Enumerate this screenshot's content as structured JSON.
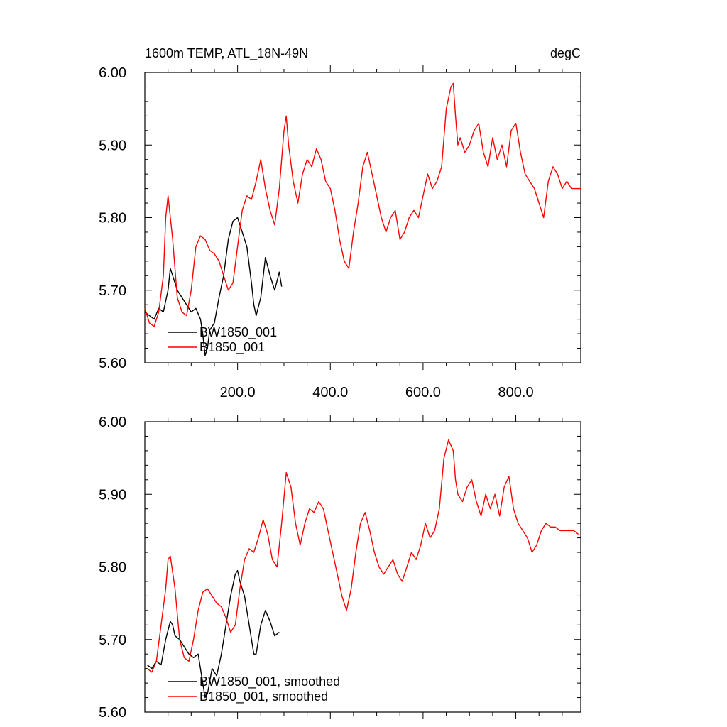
{
  "chart_data": [
    {
      "type": "line",
      "title_left": "1600m TEMP, ATL_18N-49N",
      "title_right": "degC",
      "xlim": [
        0,
        940
      ],
      "ylim": [
        5.6,
        6.0
      ],
      "x_ticks": [
        200,
        400,
        600,
        800
      ],
      "x_tick_labels": [
        "200.0",
        "400.0",
        "600.0",
        "800.0"
      ],
      "y_ticks": [
        5.6,
        5.7,
        5.8,
        5.9,
        6.0
      ],
      "y_tick_labels": [
        "5.60",
        "5.70",
        "5.80",
        "5.90",
        "6.00"
      ],
      "grid": false,
      "legend_position": "bottom-left",
      "series": [
        {
          "name": "BW1850_001",
          "color": "#000000",
          "x": [
            0,
            10,
            20,
            30,
            40,
            50,
            55,
            60,
            70,
            80,
            90,
            100,
            110,
            120,
            125,
            130,
            135,
            140,
            150,
            160,
            170,
            180,
            190,
            200,
            210,
            220,
            230,
            235,
            240,
            250,
            260,
            270,
            280,
            290,
            295
          ],
          "y": [
            5.67,
            5.665,
            5.66,
            5.675,
            5.67,
            5.7,
            5.73,
            5.72,
            5.7,
            5.69,
            5.68,
            5.67,
            5.675,
            5.66,
            5.64,
            5.61,
            5.62,
            5.645,
            5.655,
            5.69,
            5.72,
            5.77,
            5.795,
            5.8,
            5.78,
            5.76,
            5.71,
            5.68,
            5.665,
            5.69,
            5.745,
            5.72,
            5.7,
            5.725,
            5.705
          ]
        },
        {
          "name": "B1850_001",
          "color": "#ff0000",
          "x": [
            0,
            10,
            20,
            30,
            40,
            45,
            50,
            60,
            70,
            80,
            90,
            100,
            110,
            120,
            130,
            140,
            150,
            160,
            170,
            180,
            190,
            200,
            210,
            220,
            230,
            240,
            250,
            260,
            270,
            280,
            290,
            300,
            305,
            310,
            320,
            330,
            340,
            350,
            360,
            370,
            380,
            390,
            400,
            410,
            420,
            430,
            440,
            450,
            460,
            470,
            480,
            490,
            500,
            510,
            520,
            530,
            540,
            550,
            560,
            570,
            580,
            590,
            600,
            610,
            620,
            630,
            640,
            650,
            660,
            665,
            670,
            675,
            680,
            690,
            700,
            710,
            720,
            730,
            740,
            750,
            760,
            770,
            780,
            790,
            800,
            810,
            820,
            830,
            840,
            850,
            860,
            870,
            880,
            890,
            900,
            910,
            920,
            930,
            940
          ],
          "y": [
            5.675,
            5.655,
            5.65,
            5.67,
            5.72,
            5.8,
            5.83,
            5.77,
            5.69,
            5.67,
            5.665,
            5.7,
            5.76,
            5.775,
            5.77,
            5.755,
            5.75,
            5.74,
            5.72,
            5.7,
            5.71,
            5.76,
            5.81,
            5.83,
            5.825,
            5.85,
            5.88,
            5.84,
            5.81,
            5.79,
            5.84,
            5.92,
            5.94,
            5.9,
            5.85,
            5.82,
            5.86,
            5.88,
            5.87,
            5.895,
            5.88,
            5.85,
            5.84,
            5.81,
            5.77,
            5.74,
            5.73,
            5.78,
            5.82,
            5.87,
            5.89,
            5.86,
            5.83,
            5.8,
            5.78,
            5.8,
            5.81,
            5.77,
            5.78,
            5.8,
            5.81,
            5.8,
            5.83,
            5.86,
            5.84,
            5.85,
            5.87,
            5.95,
            5.98,
            5.985,
            5.94,
            5.9,
            5.91,
            5.89,
            5.9,
            5.92,
            5.93,
            5.89,
            5.87,
            5.91,
            5.88,
            5.9,
            5.87,
            5.92,
            5.93,
            5.89,
            5.86,
            5.85,
            5.84,
            5.82,
            5.8,
            5.85,
            5.87,
            5.86,
            5.84,
            5.85,
            5.84,
            5.84,
            5.84
          ]
        }
      ]
    },
    {
      "type": "line",
      "xlim": [
        0,
        940
      ],
      "ylim": [
        5.6,
        6.0
      ],
      "x_ticks": [
        200,
        400,
        600,
        800
      ],
      "y_ticks": [
        5.6,
        5.7,
        5.8,
        5.9,
        6.0
      ],
      "y_tick_labels": [
        "5.60",
        "5.70",
        "5.80",
        "5.90",
        "6.00"
      ],
      "grid": false,
      "legend_position": "bottom-left",
      "series": [
        {
          "name": "BW1850_001, smoothed",
          "color": "#000000",
          "x": [
            5,
            15,
            25,
            35,
            45,
            55,
            60,
            65,
            75,
            85,
            95,
            105,
            115,
            125,
            130,
            135,
            145,
            155,
            165,
            175,
            185,
            195,
            200,
            205,
            215,
            225,
            235,
            240,
            250,
            260,
            270,
            280,
            290
          ],
          "y": [
            5.665,
            5.66,
            5.67,
            5.665,
            5.7,
            5.725,
            5.72,
            5.705,
            5.7,
            5.69,
            5.68,
            5.675,
            5.68,
            5.64,
            5.62,
            5.625,
            5.66,
            5.65,
            5.68,
            5.72,
            5.76,
            5.79,
            5.795,
            5.78,
            5.76,
            5.72,
            5.68,
            5.68,
            5.72,
            5.74,
            5.725,
            5.705,
            5.71
          ]
        },
        {
          "name": "B1850_001, smoothed",
          "color": "#ff0000",
          "x": [
            5,
            15,
            25,
            35,
            45,
            50,
            55,
            65,
            75,
            85,
            95,
            105,
            115,
            125,
            135,
            145,
            155,
            165,
            175,
            185,
            195,
            205,
            215,
            225,
            235,
            245,
            255,
            265,
            275,
            285,
            295,
            305,
            315,
            325,
            335,
            345,
            355,
            365,
            375,
            385,
            395,
            405,
            415,
            425,
            435,
            445,
            455,
            465,
            475,
            485,
            495,
            505,
            515,
            525,
            535,
            545,
            555,
            565,
            575,
            585,
            595,
            605,
            615,
            625,
            635,
            645,
            655,
            665,
            670,
            675,
            685,
            695,
            705,
            715,
            725,
            735,
            745,
            755,
            765,
            775,
            785,
            795,
            805,
            815,
            825,
            835,
            845,
            855,
            865,
            875,
            885,
            895,
            905,
            915,
            925,
            935
          ],
          "y": [
            5.66,
            5.655,
            5.67,
            5.72,
            5.77,
            5.81,
            5.815,
            5.77,
            5.7,
            5.675,
            5.67,
            5.7,
            5.74,
            5.765,
            5.77,
            5.76,
            5.75,
            5.745,
            5.73,
            5.71,
            5.72,
            5.77,
            5.81,
            5.825,
            5.82,
            5.84,
            5.865,
            5.845,
            5.81,
            5.8,
            5.86,
            5.93,
            5.91,
            5.86,
            5.83,
            5.86,
            5.88,
            5.875,
            5.89,
            5.88,
            5.85,
            5.82,
            5.79,
            5.76,
            5.74,
            5.77,
            5.82,
            5.86,
            5.875,
            5.85,
            5.82,
            5.8,
            5.79,
            5.8,
            5.81,
            5.79,
            5.78,
            5.8,
            5.82,
            5.81,
            5.83,
            5.86,
            5.84,
            5.85,
            5.88,
            5.95,
            5.975,
            5.96,
            5.92,
            5.9,
            5.89,
            5.91,
            5.92,
            5.89,
            5.87,
            5.9,
            5.88,
            5.9,
            5.87,
            5.91,
            5.925,
            5.88,
            5.86,
            5.85,
            5.84,
            5.82,
            5.83,
            5.85,
            5.86,
            5.855,
            5.855,
            5.85,
            5.85,
            5.85,
            5.85,
            5.845
          ]
        }
      ]
    }
  ]
}
